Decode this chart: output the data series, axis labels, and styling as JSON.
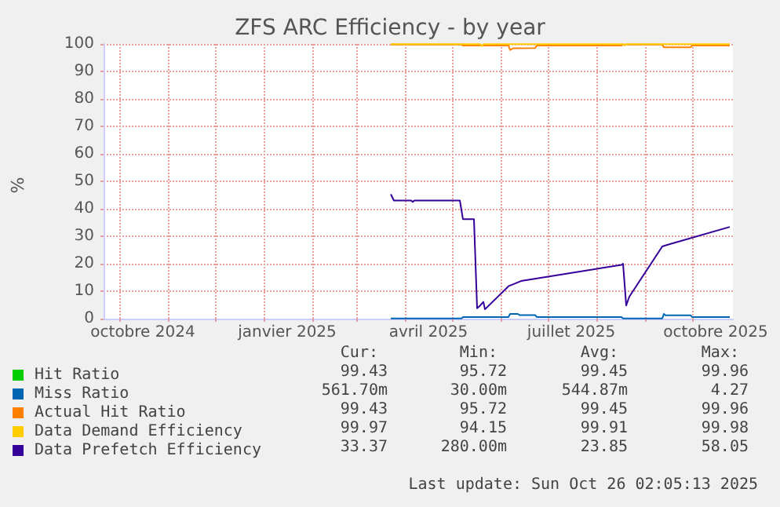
{
  "chart_data": {
    "type": "line",
    "title": "ZFS ARC Efficiency - by year",
    "ylabel": "%",
    "xlim": [
      "2024-09-21",
      "2025-10-27"
    ],
    "xticks": [
      {
        "value": "2024-10-01",
        "label": null
      },
      {
        "value": "2024-10-16",
        "label": "octobre 2024"
      },
      {
        "value": "2024-11-01",
        "label": null
      },
      {
        "value": "2024-12-01",
        "label": null
      },
      {
        "value": "2025-01-01",
        "label": null
      },
      {
        "value": "2025-01-16",
        "label": "janvier 2025"
      },
      {
        "value": "2025-02-01",
        "label": null
      },
      {
        "value": "2025-03-01",
        "label": null
      },
      {
        "value": "2025-04-01",
        "label": null
      },
      {
        "value": "2025-04-16",
        "label": "avril 2025"
      },
      {
        "value": "2025-05-01",
        "label": null
      },
      {
        "value": "2025-06-01",
        "label": null
      },
      {
        "value": "2025-07-01",
        "label": null
      },
      {
        "value": "2025-07-16",
        "label": "juillet 2025"
      },
      {
        "value": "2025-08-01",
        "label": null
      },
      {
        "value": "2025-09-01",
        "label": null
      },
      {
        "value": "2025-10-01",
        "label": null
      },
      {
        "value": "2025-10-16",
        "label": "octobre 2025"
      }
    ],
    "ylim": [
      0,
      100
    ],
    "yticks": [
      0,
      10,
      20,
      30,
      40,
      50,
      60,
      70,
      80,
      90,
      100
    ],
    "grid": true,
    "legend": "bottom",
    "marker": "none",
    "line_style": "solid",
    "series": [
      {
        "name": "Hit Ratio",
        "color": "#00cc00"
      },
      {
        "name": "Miss Ratio",
        "color": "#0066b3",
        "x": [
          "2025-03-23",
          "2025-05-07",
          "2025-05-08",
          "2025-06-06",
          "2025-06-07",
          "2025-06-12",
          "2025-06-13",
          "2025-06-23",
          "2025-06-24",
          "2025-08-17",
          "2025-08-18",
          "2025-09-12",
          "2025-09-13",
          "2025-09-14",
          "2025-09-30",
          "2025-10-01",
          "2025-10-25"
        ],
        "values": [
          0.1,
          0.1,
          0.6,
          0.6,
          1.7,
          1.7,
          1.3,
          1.3,
          0.6,
          0.6,
          0.1,
          0.1,
          1.7,
          1.2,
          1.2,
          0.6,
          0.6
        ]
      },
      {
        "name": "Actual Hit Ratio",
        "color": "#ff8000",
        "x": [
          "2025-03-23",
          "2025-05-07",
          "2025-05-08",
          "2025-06-06",
          "2025-06-07",
          "2025-06-09",
          "2025-06-23",
          "2025-06-24",
          "2025-08-17",
          "2025-08-18",
          "2025-09-12",
          "2025-09-13",
          "2025-09-30",
          "2025-10-01",
          "2025-10-25"
        ],
        "values": [
          99.8,
          99.8,
          99.4,
          99.4,
          97.8,
          98.4,
          98.5,
          99.4,
          99.4,
          99.8,
          99.8,
          98.8,
          98.8,
          99.4,
          99.4
        ]
      },
      {
        "name": "Data Demand Efficiency",
        "color": "#ffcc00",
        "x": [
          "2025-03-23",
          "2025-05-19",
          "2025-05-20",
          "2025-05-21",
          "2025-08-18",
          "2025-08-19",
          "2025-08-20",
          "2025-10-25"
        ],
        "values": [
          99.9,
          99.9,
          99.2,
          99.9,
          99.9,
          99.4,
          99.9,
          99.9
        ]
      },
      {
        "name": "Data Prefetch Efficiency",
        "color": "#330099",
        "x": [
          "2025-03-23",
          "2025-03-25",
          "2025-04-05",
          "2025-04-06",
          "2025-04-07",
          "2025-05-06",
          "2025-05-08",
          "2025-05-15",
          "2025-05-17",
          "2025-05-19",
          "2025-05-21",
          "2025-05-22",
          "2025-06-06",
          "2025-06-14",
          "2025-08-17",
          "2025-08-18",
          "2025-08-20",
          "2025-08-22",
          "2025-09-12",
          "2025-09-16",
          "2025-10-25"
        ],
        "values": [
          45.3,
          43,
          43,
          42.5,
          43,
          43,
          36.2,
          36.2,
          3.8,
          4.8,
          6.1,
          3.4,
          11.8,
          13.7,
          19.6,
          20,
          4.8,
          8,
          26.3,
          27,
          33.4
        ]
      }
    ],
    "annotations": [
      "Cur:",
      "Min:",
      "Avg:",
      "Max:",
      "99.43",
      "95.72",
      "99.45",
      "99.96",
      "561.70m",
      "30.00m",
      "544.87m",
      "4.27",
      "99.43",
      "95.72",
      "99.45",
      "99.96",
      "99.97",
      "94.15",
      "99.91",
      "99.98",
      "33.37",
      "280.00m",
      "23.85",
      "58.05",
      "Last update: Sun Oct 26 02:05:13 2025"
    ]
  }
}
